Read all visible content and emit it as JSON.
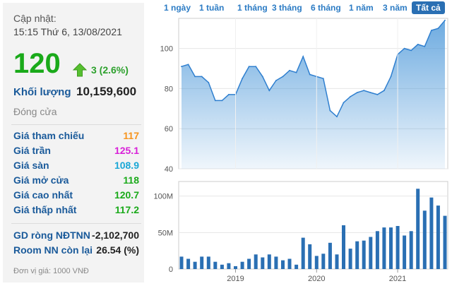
{
  "info": {
    "updated_label": "Cập nhật:",
    "updated_time": "15:15 Thứ 6, 13/08/2021",
    "price": "120",
    "change": "3 (2.6%)",
    "volume_label": "Khối lượng",
    "volume_value": "10,159,600",
    "status": "Đóng cửa"
  },
  "stats": [
    {
      "label": "Giá tham chiếu",
      "value": "117",
      "color": "#f7941d"
    },
    {
      "label": "Giá trần",
      "value": "125.1",
      "color": "#d81fd8"
    },
    {
      "label": "Giá sàn",
      "value": "108.9",
      "color": "#1aa7d6"
    },
    {
      "label": "Giá mở cửa",
      "value": "118",
      "color": "#1aaa1a"
    },
    {
      "label": "Giá cao nhất",
      "value": "120.7",
      "color": "#1aaa1a"
    },
    {
      "label": "Giá thấp nhất",
      "value": "117.2",
      "color": "#1aaa1a"
    }
  ],
  "foreign": [
    {
      "label": "GD ròng NĐTNN",
      "value": "-2,102,700"
    },
    {
      "label": "Room NN còn lại",
      "value": "26.54 (%)"
    }
  ],
  "unit_note": "Đơn vị giá: 1000 VNĐ",
  "range_buttons": [
    "1 ngày",
    "1 tuần",
    "1 tháng",
    "3 tháng",
    "6 tháng",
    "1 năm",
    "3 năm",
    "Tất cả"
  ],
  "active_range": "Tất cả",
  "chart_data": [
    {
      "type": "area",
      "x_ticks": [
        "2019",
        "2020",
        "2021"
      ],
      "ylim": [
        40,
        115
      ],
      "yticks": [
        40,
        60,
        80,
        100
      ],
      "grid": true,
      "color": "#3d8fd6",
      "x": [
        "2018-05",
        "2018-06",
        "2018-07",
        "2018-08",
        "2018-09",
        "2018-10",
        "2018-11",
        "2018-12",
        "2019-01",
        "2019-02",
        "2019-03",
        "2019-04",
        "2019-05",
        "2019-06",
        "2019-07",
        "2019-08",
        "2019-09",
        "2019-10",
        "2019-11",
        "2019-12",
        "2020-01",
        "2020-02",
        "2020-03",
        "2020-04",
        "2020-05",
        "2020-06",
        "2020-07",
        "2020-08",
        "2020-09",
        "2020-10",
        "2020-11",
        "2020-12",
        "2021-01",
        "2021-02",
        "2021-03",
        "2021-04",
        "2021-05",
        "2021-06",
        "2021-07",
        "2021-08"
      ],
      "values": [
        91,
        92,
        86,
        86,
        83,
        74,
        74,
        77,
        77,
        85,
        91,
        91,
        86,
        79,
        84,
        86,
        89,
        88,
        96,
        87,
        86,
        85,
        69,
        66,
        73,
        76,
        78,
        79,
        78,
        77,
        79,
        86,
        97,
        100,
        99,
        102,
        101,
        109,
        110,
        114
      ]
    },
    {
      "type": "bar",
      "x_ticks": [
        "2019",
        "2020",
        "2021"
      ],
      "yticks": [
        "0",
        "50M",
        "100M"
      ],
      "ylim": [
        0,
        120
      ],
      "unit": "M",
      "color": "#2a6fb3",
      "x": [
        "2018-05",
        "2018-06",
        "2018-07",
        "2018-08",
        "2018-09",
        "2018-10",
        "2018-11",
        "2018-12",
        "2019-01",
        "2019-02",
        "2019-03",
        "2019-04",
        "2019-05",
        "2019-06",
        "2019-07",
        "2019-08",
        "2019-09",
        "2019-10",
        "2019-11",
        "2019-12",
        "2020-01",
        "2020-02",
        "2020-03",
        "2020-04",
        "2020-05",
        "2020-06",
        "2020-07",
        "2020-08",
        "2020-09",
        "2020-10",
        "2020-11",
        "2020-12",
        "2021-01",
        "2021-02",
        "2021-03",
        "2021-04",
        "2021-05",
        "2021-06",
        "2021-07",
        "2021-08"
      ],
      "values": [
        17,
        14,
        10,
        17,
        17,
        10,
        6,
        8,
        4,
        10,
        14,
        20,
        16,
        20,
        17,
        12,
        14,
        6,
        43,
        34,
        18,
        21,
        36,
        20,
        60,
        28,
        38,
        39,
        44,
        52,
        57,
        57,
        59,
        46,
        52,
        110,
        80,
        98,
        87,
        73
      ]
    }
  ]
}
